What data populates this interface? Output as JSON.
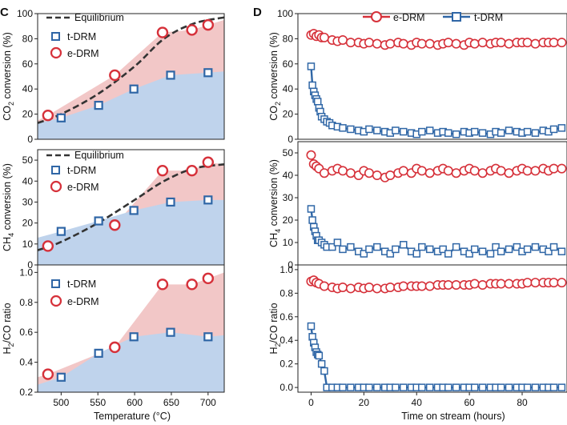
{
  "colors": {
    "red": "#d6313a",
    "blue": "#2f66a6",
    "red_fill": "#f2c7c7",
    "blue_fill": "#bfd3ec",
    "eq_line": "#333333"
  },
  "panel_c": {
    "letter": "C",
    "xlabel": "Temperature (°C)",
    "xlim": [
      468,
      722
    ],
    "xticks": [
      "500",
      "550",
      "600",
      "650",
      "700"
    ],
    "xtick_values": [
      500,
      550,
      600,
      650,
      700
    ],
    "legend": {
      "eq": "Equilibrium",
      "t": "t-DRM",
      "e": "e-DRM"
    }
  },
  "panel_d": {
    "letter": "D",
    "xlabel": "Time on stream (hours)",
    "xlim": [
      -5,
      97
    ],
    "xticks": [
      "0",
      "20",
      "40",
      "60",
      "80"
    ],
    "xtick_values": [
      0,
      20,
      40,
      60,
      80
    ],
    "legend": {
      "e": "e-DRM",
      "t": "t-DRM"
    }
  },
  "chart_data": [
    {
      "type": "area",
      "id": "C1",
      "title": "",
      "ylabel_main": "CO",
      "ylabel_sub": "2",
      "ylabel_rest": " conversion (%)",
      "xlabel": "Temperature (°C)",
      "xlim": [
        468,
        722
      ],
      "ylim": [
        0,
        100
      ],
      "yticks": [
        "0",
        "20",
        "40",
        "60",
        "80",
        "100"
      ],
      "ytick_values": [
        0,
        20,
        40,
        60,
        80,
        100
      ],
      "series": [
        {
          "name": "e-DRM",
          "x": [
            482,
            573,
            638,
            678,
            700
          ],
          "values": [
            19,
            51,
            85,
            87,
            91
          ]
        },
        {
          "name": "t-DRM",
          "x": [
            500,
            551,
            599,
            649,
            700
          ],
          "values": [
            17,
            27,
            40,
            51,
            53
          ]
        },
        {
          "name": "Equilibrium",
          "x": [
            468,
            500,
            550,
            600,
            640,
            680,
            722
          ],
          "values": [
            13,
            20,
            36,
            58,
            80,
            92,
            97
          ]
        }
      ],
      "fill_top_e": {
        "x": [
          468,
          482,
          573,
          638,
          678,
          700,
          722
        ],
        "values": [
          15,
          19,
          51,
          85,
          87,
          91,
          95
        ]
      },
      "fill_top_t": {
        "x": [
          468,
          500,
          551,
          599,
          649,
          700,
          722
        ],
        "values": [
          13,
          17,
          27,
          40,
          51,
          53,
          54
        ]
      }
    },
    {
      "type": "area",
      "id": "C2",
      "title": "",
      "ylabel_main": "CH",
      "ylabel_sub": "4",
      "ylabel_rest": " conversion (%)",
      "xlabel": "Temperature (°C)",
      "xlim": [
        468,
        722
      ],
      "ylim": [
        0,
        55
      ],
      "yticks": [
        "0",
        "10",
        "20",
        "30",
        "40",
        "50"
      ],
      "ytick_values": [
        0,
        10,
        20,
        30,
        40,
        50
      ],
      "series": [
        {
          "name": "e-DRM",
          "x": [
            482,
            573,
            638,
            678,
            700
          ],
          "values": [
            9,
            19,
            45,
            45,
            49
          ]
        },
        {
          "name": "t-DRM",
          "x": [
            500,
            551,
            599,
            649,
            700
          ],
          "values": [
            16,
            21,
            26,
            30,
            31
          ]
        },
        {
          "name": "Equilibrium",
          "x": [
            468,
            500,
            550,
            600,
            640,
            680,
            722
          ],
          "values": [
            7,
            11,
            20,
            31,
            40,
            46,
            48
          ]
        }
      ],
      "fill_top_e": {
        "x": [
          468,
          482,
          573,
          638,
          678,
          700,
          722
        ],
        "values": [
          7,
          9,
          19,
          45,
          45,
          49,
          48
        ]
      },
      "fill_top_t": {
        "x": [
          468,
          500,
          551,
          599,
          649,
          700,
          722
        ],
        "values": [
          13,
          16,
          21,
          26,
          30,
          31,
          31
        ]
      }
    },
    {
      "type": "area",
      "id": "C3",
      "title": "",
      "ylabel_main": "H",
      "ylabel_sub": "2",
      "ylabel_rest": "/CO ratio",
      "xlabel": "Temperature (°C)",
      "xlim": [
        468,
        722
      ],
      "ylim": [
        0.2,
        1.05
      ],
      "yticks": [
        "0.2",
        "0.4",
        "0.6",
        "0.8",
        "1.0"
      ],
      "ytick_values": [
        0.2,
        0.4,
        0.6,
        0.8,
        1.0
      ],
      "series": [
        {
          "name": "e-DRM",
          "x": [
            482,
            573,
            638,
            678,
            700
          ],
          "values": [
            0.32,
            0.5,
            0.92,
            0.92,
            0.96
          ]
        },
        {
          "name": "t-DRM",
          "x": [
            500,
            551,
            599,
            649,
            700
          ],
          "values": [
            0.3,
            0.46,
            0.57,
            0.6,
            0.57
          ]
        }
      ],
      "fill_top_e": {
        "x": [
          468,
          482,
          573,
          638,
          678,
          700,
          722
        ],
        "values": [
          0.3,
          0.32,
          0.5,
          0.92,
          0.92,
          0.96,
          1.0
        ]
      },
      "fill_top_t": {
        "x": [
          468,
          500,
          551,
          599,
          649,
          700,
          722
        ],
        "values": [
          0.25,
          0.3,
          0.46,
          0.57,
          0.6,
          0.57,
          0.58
        ]
      }
    },
    {
      "type": "line",
      "id": "D1",
      "title": "",
      "ylabel_main": "CO",
      "ylabel_sub": "2",
      "ylabel_rest": " conversion (%)",
      "xlabel": "Time on stream (hours)",
      "xlim": [
        -5,
        97
      ],
      "ylim": [
        0,
        100
      ],
      "yticks": [
        "0",
        "20",
        "40",
        "60",
        "80",
        "100"
      ],
      "ytick_values": [
        0,
        20,
        40,
        60,
        80,
        100
      ],
      "series": [
        {
          "name": "e-DRM",
          "x": [
            0,
            1,
            2,
            3,
            4,
            5,
            8,
            10,
            12,
            15,
            18,
            20,
            22,
            25,
            28,
            30,
            33,
            35,
            38,
            40,
            42,
            45,
            48,
            50,
            52,
            55,
            58,
            60,
            62,
            65,
            68,
            70,
            72,
            75,
            78,
            80,
            82,
            85,
            88,
            90,
            92,
            95
          ],
          "values": [
            83,
            84,
            82,
            83,
            81,
            81,
            79,
            78,
            79,
            77,
            77,
            76,
            77,
            76,
            75,
            76,
            77,
            76,
            75,
            77,
            76,
            76,
            75,
            76,
            77,
            76,
            75,
            77,
            76,
            77,
            76,
            77,
            77,
            76,
            77,
            77,
            77,
            76,
            77,
            77,
            77,
            77
          ]
        },
        {
          "name": "t-DRM",
          "x": [
            0,
            0.5,
            1,
            1.5,
            2,
            2.5,
            3,
            3.5,
            4,
            5,
            6,
            7,
            8,
            10,
            12,
            15,
            18,
            20,
            22,
            25,
            28,
            30,
            32,
            35,
            38,
            40,
            42,
            45,
            48,
            50,
            52,
            55,
            58,
            60,
            62,
            65,
            68,
            70,
            72,
            75,
            78,
            80,
            82,
            85,
            88,
            90,
            92,
            95
          ],
          "values": [
            58,
            43,
            38,
            35,
            32,
            30,
            25,
            22,
            18,
            16,
            14,
            13,
            11,
            10,
            9,
            8,
            7,
            6,
            8,
            7,
            6,
            5,
            7,
            6,
            5,
            4,
            6,
            7,
            5,
            6,
            5,
            4,
            6,
            5,
            6,
            5,
            4,
            6,
            5,
            7,
            6,
            5,
            6,
            5,
            7,
            6,
            8,
            9
          ]
        }
      ]
    },
    {
      "type": "line",
      "id": "D2",
      "title": "",
      "ylabel_main": "CH",
      "ylabel_sub": "4",
      "ylabel_rest": " conversion (%)",
      "xlabel": "Time on stream (hours)",
      "xlim": [
        -5,
        97
      ],
      "ylim": [
        0,
        55
      ],
      "yticks": [
        "0",
        "10",
        "20",
        "30",
        "40",
        "50"
      ],
      "ytick_values": [
        0,
        10,
        20,
        30,
        40,
        50
      ],
      "series": [
        {
          "name": "e-DRM",
          "x": [
            0,
            1,
            2,
            3,
            5,
            8,
            10,
            12,
            15,
            18,
            20,
            22,
            25,
            28,
            30,
            33,
            35,
            38,
            40,
            42,
            45,
            48,
            50,
            52,
            55,
            58,
            60,
            62,
            65,
            68,
            70,
            72,
            75,
            78,
            80,
            82,
            85,
            88,
            90,
            92,
            95
          ],
          "values": [
            49,
            45,
            44,
            43,
            41,
            42,
            43,
            42,
            41,
            40,
            42,
            41,
            40,
            39,
            40,
            41,
            42,
            41,
            43,
            42,
            41,
            42,
            43,
            42,
            41,
            42,
            43,
            42,
            41,
            42,
            43,
            42,
            41,
            42,
            43,
            42,
            42,
            43,
            42,
            43,
            43
          ]
        },
        {
          "name": "t-DRM",
          "x": [
            0,
            0.5,
            1,
            1.5,
            2,
            2.5,
            3,
            4,
            5,
            6,
            8,
            10,
            12,
            15,
            18,
            20,
            22,
            25,
            28,
            30,
            32,
            35,
            38,
            40,
            42,
            45,
            48,
            50,
            52,
            55,
            58,
            60,
            62,
            65,
            68,
            70,
            72,
            75,
            78,
            80,
            82,
            85,
            88,
            90,
            92,
            95
          ],
          "values": [
            25,
            20,
            17,
            15,
            13,
            11,
            11,
            10,
            9,
            8,
            8,
            10,
            7,
            8,
            6,
            5,
            7,
            8,
            6,
            5,
            7,
            9,
            6,
            5,
            8,
            7,
            6,
            7,
            5,
            8,
            6,
            5,
            7,
            6,
            5,
            8,
            6,
            7,
            8,
            6,
            7,
            8,
            7,
            6,
            8,
            6
          ]
        }
      ]
    },
    {
      "type": "line",
      "id": "D3",
      "title": "",
      "ylabel_main": "H",
      "ylabel_sub": "2",
      "ylabel_rest": "/CO ratio",
      "xlabel": "Time on stream (hours)",
      "xlim": [
        -5,
        97
      ],
      "ylim": [
        -0.04,
        1.04
      ],
      "yticks": [
        "0.0",
        "0.2",
        "0.4",
        "0.6",
        "0.8",
        "1.0"
      ],
      "ytick_values": [
        0.0,
        0.2,
        0.4,
        0.6,
        0.8,
        1.0
      ],
      "series": [
        {
          "name": "e-DRM",
          "x": [
            0,
            1,
            2,
            3,
            5,
            8,
            10,
            12,
            15,
            18,
            20,
            22,
            25,
            28,
            30,
            33,
            35,
            38,
            40,
            42,
            45,
            48,
            50,
            52,
            55,
            58,
            60,
            62,
            65,
            68,
            70,
            72,
            75,
            78,
            80,
            82,
            85,
            88,
            90,
            92,
            95
          ],
          "values": [
            0.9,
            0.91,
            0.89,
            0.88,
            0.86,
            0.85,
            0.84,
            0.85,
            0.84,
            0.85,
            0.84,
            0.85,
            0.84,
            0.84,
            0.85,
            0.85,
            0.86,
            0.86,
            0.86,
            0.86,
            0.86,
            0.87,
            0.87,
            0.87,
            0.87,
            0.87,
            0.87,
            0.88,
            0.87,
            0.88,
            0.88,
            0.88,
            0.88,
            0.88,
            0.88,
            0.89,
            0.89,
            0.89,
            0.89,
            0.89,
            0.89
          ]
        },
        {
          "name": "t-DRM",
          "x": [
            0,
            0.5,
            1,
            1.5,
            2,
            2.5,
            3,
            4,
            5,
            6,
            8,
            10,
            12,
            15,
            18,
            20,
            22,
            25,
            28,
            30,
            32,
            35,
            38,
            40,
            42,
            45,
            48,
            50,
            52,
            55,
            58,
            60,
            62,
            65,
            68,
            70,
            72,
            75,
            78,
            80,
            82,
            85,
            88,
            90,
            92,
            95
          ],
          "values": [
            0.52,
            0.43,
            0.38,
            0.34,
            0.3,
            0.28,
            0.27,
            0.2,
            0.14,
            0.0,
            0.0,
            0.0,
            0.0,
            0.0,
            0.0,
            0.0,
            0.0,
            0.0,
            0.0,
            0.0,
            0.0,
            0.0,
            0.0,
            0.0,
            0.0,
            0.0,
            0.0,
            0.0,
            0.0,
            0.0,
            0.0,
            0.0,
            0.0,
            0.0,
            0.0,
            0.0,
            0.0,
            0.0,
            0.0,
            0.0,
            0.0,
            0.0,
            0.0,
            0.0,
            0.0,
            0.0
          ]
        }
      ]
    }
  ]
}
